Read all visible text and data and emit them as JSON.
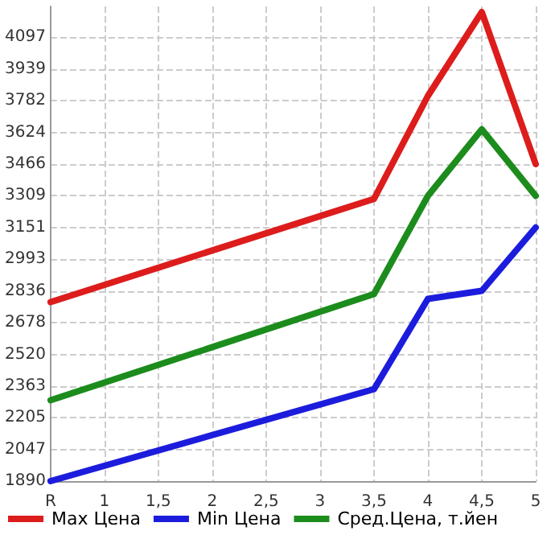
{
  "chart_data": {
    "type": "line",
    "categories": [
      "R",
      "1",
      "1,5",
      "2",
      "2,5",
      "3",
      "3,5",
      "4",
      "4,5",
      "5"
    ],
    "series": [
      {
        "name": "Max Цена",
        "color": "#dd1c1c",
        "values": [
          2780,
          null,
          null,
          null,
          null,
          null,
          3293,
          3805,
          4222,
          3466
        ]
      },
      {
        "name": "Min Цена",
        "color": "#1c1cdd",
        "values": [
          1890,
          null,
          null,
          null,
          null,
          null,
          2347,
          2796,
          2836,
          3151
        ]
      },
      {
        "name": "Сред.Цена, т.йен",
        "color": "#1c8c1c",
        "values": [
          2292,
          null,
          null,
          null,
          null,
          null,
          2820,
          3308,
          3639,
          3308
        ]
      }
    ],
    "ylim": [
      1890,
      4250
    ],
    "yticks": [
      1890,
      2047,
      2205,
      2363,
      2520,
      2678,
      2836,
      2993,
      3151,
      3309,
      3466,
      3624,
      3782,
      3939,
      4097
    ],
    "grid": true,
    "legend": "bottom",
    "marker": "none",
    "line_style": "solid"
  }
}
